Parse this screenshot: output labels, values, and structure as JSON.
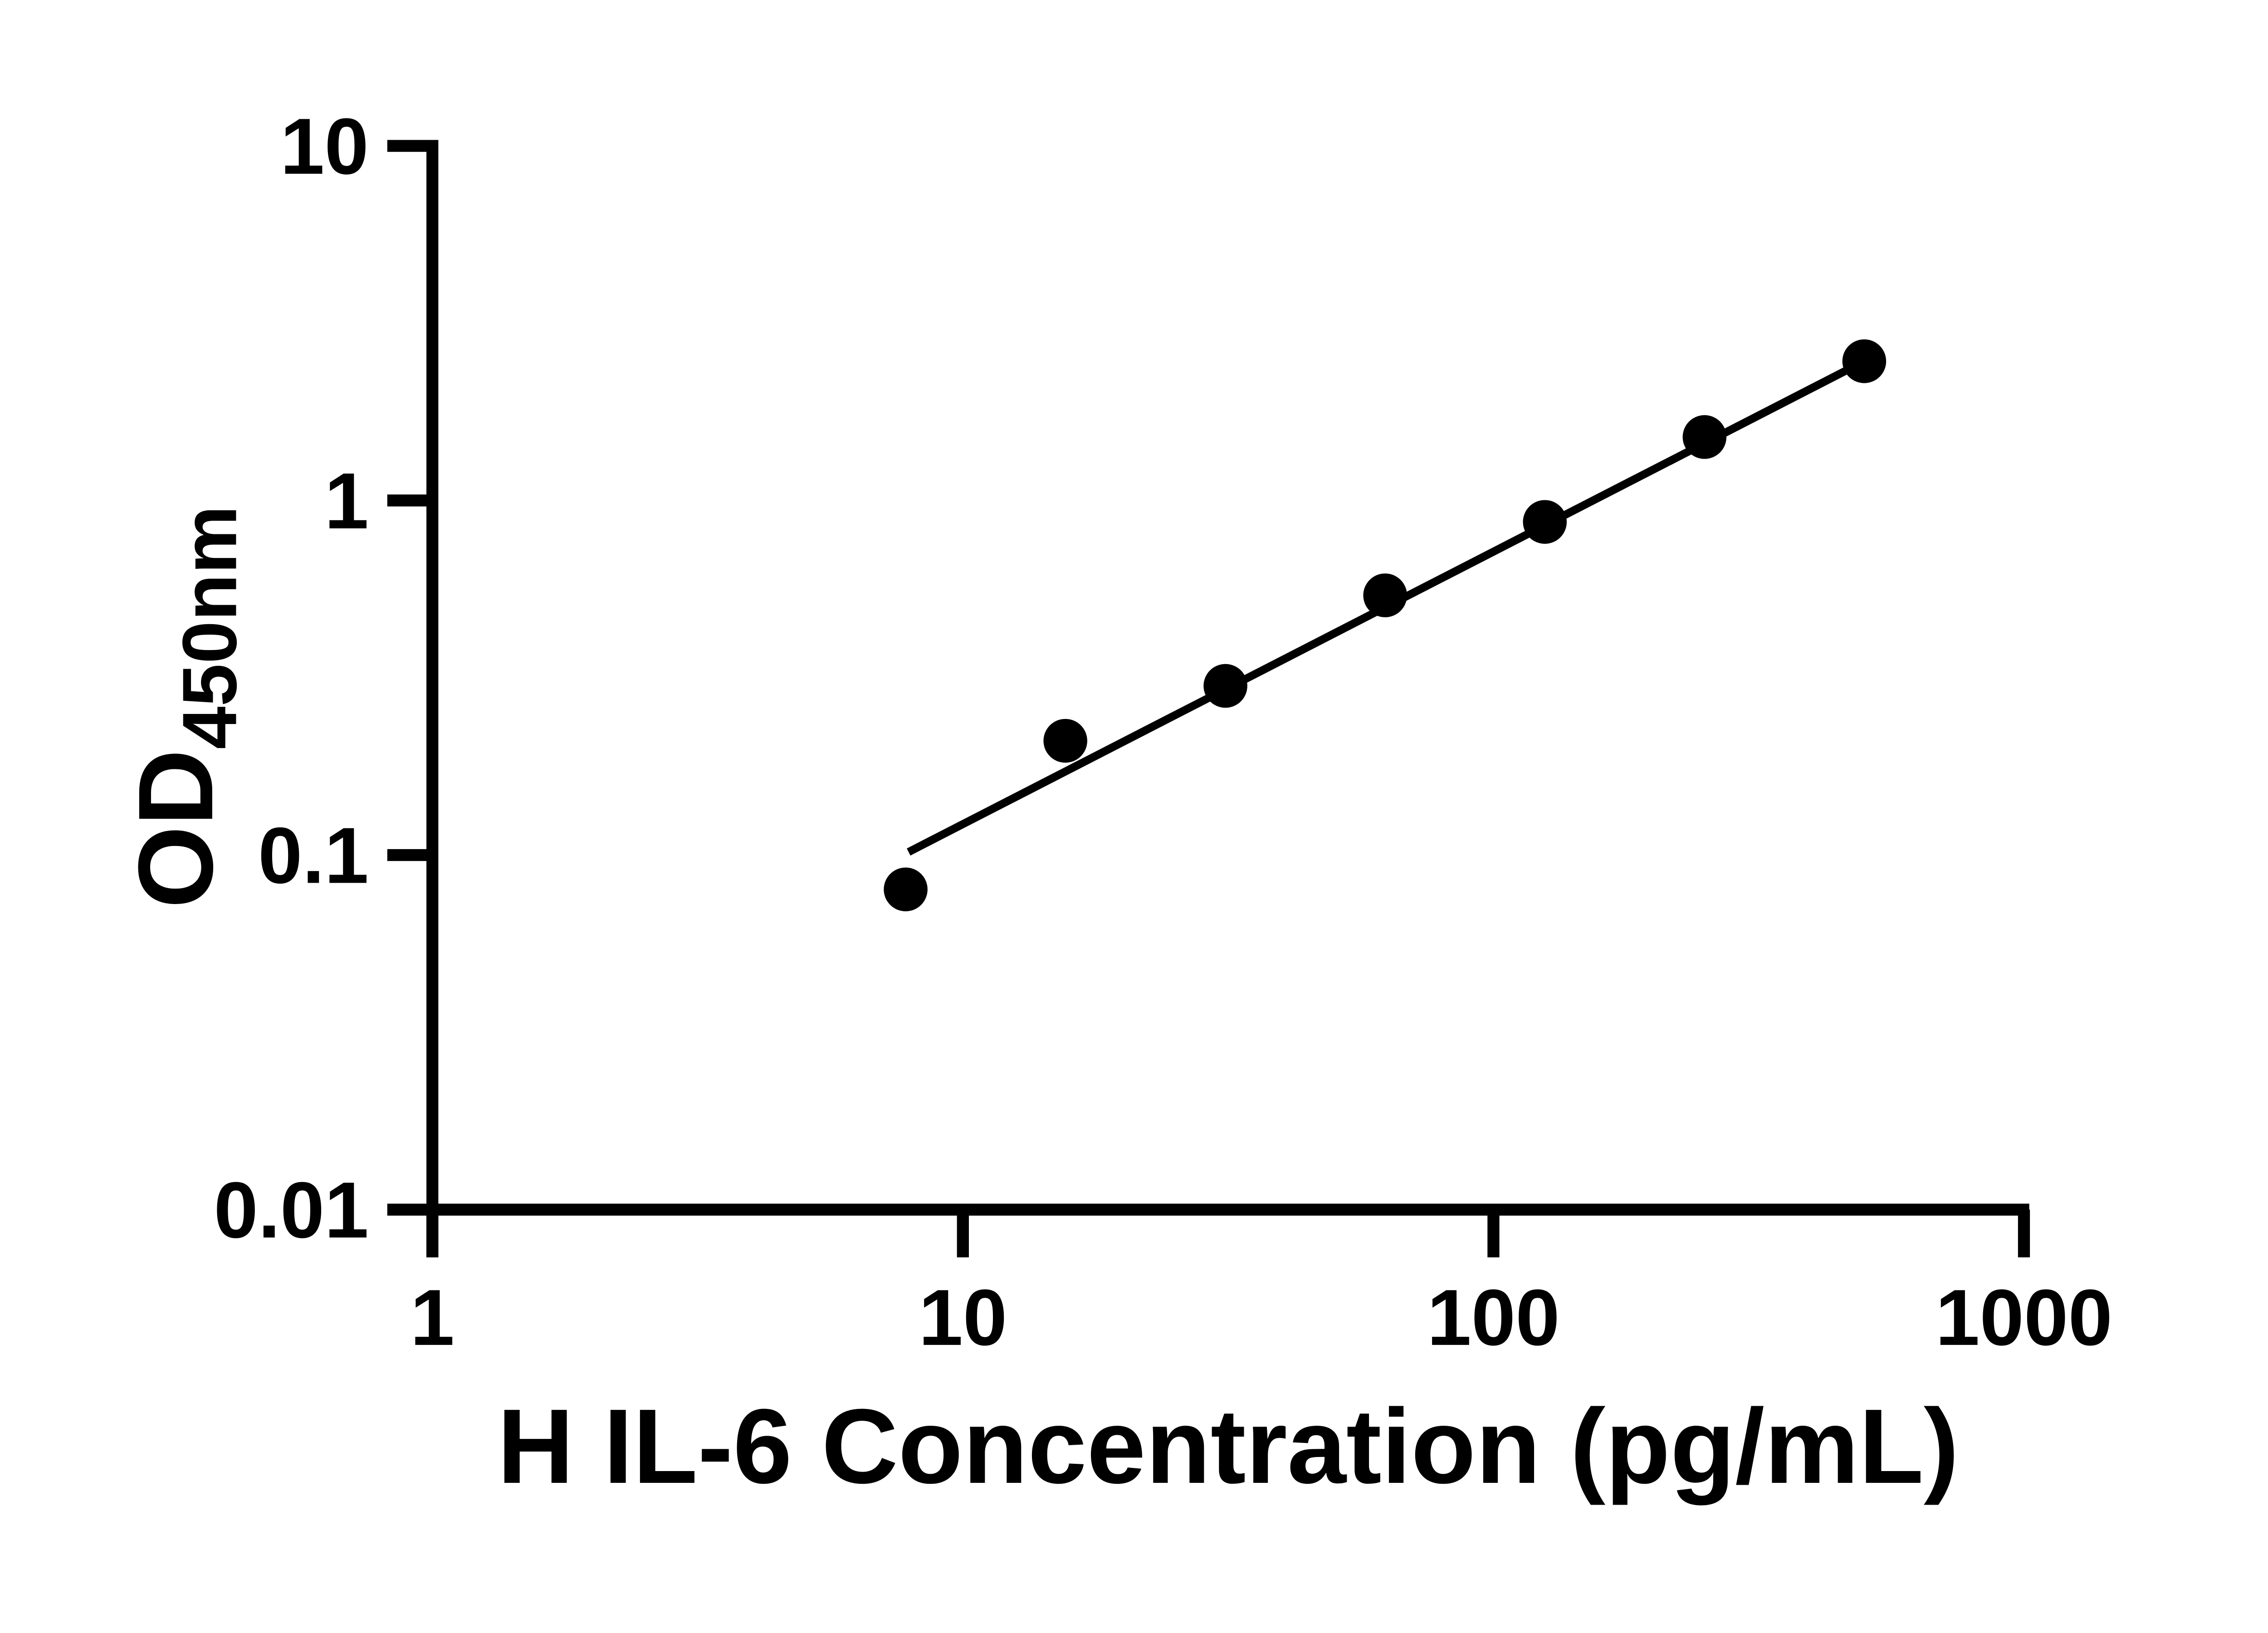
{
  "figure": {
    "background_color": "#ffffff",
    "ink_color": "#000000"
  },
  "chart_data": {
    "type": "scatter",
    "title": "",
    "xlabel": "H IL-6 Concentration (pg/mL)",
    "ylabel": "OD450nm",
    "ylabel_main": "OD",
    "ylabel_sub": "450nm",
    "x_scale": "log10",
    "y_scale": "log10",
    "xlim": [
      1,
      1000
    ],
    "ylim": [
      0.01,
      10
    ],
    "x_ticks": [
      1,
      10,
      100,
      1000
    ],
    "x_tick_labels": [
      "1",
      "10",
      "100",
      "1000"
    ],
    "y_ticks": [
      10,
      1,
      0.1,
      0.01
    ],
    "y_tick_labels": [
      "10",
      "1",
      "0.1",
      "0.01"
    ],
    "grid": false,
    "legend_position": "none",
    "marker": "filled-circle",
    "marker_color": "#000000",
    "series": [
      {
        "points": [
          {
            "x": 7.8,
            "y": 0.08
          },
          {
            "x": 15.6,
            "y": 0.21
          },
          {
            "x": 31.25,
            "y": 0.3
          },
          {
            "x": 62.5,
            "y": 0.54
          },
          {
            "x": 125,
            "y": 0.87
          },
          {
            "x": 250,
            "y": 1.51
          },
          {
            "x": 500,
            "y": 2.47
          }
        ]
      }
    ],
    "trend_line": {
      "x1": 7.9,
      "y1": 0.102,
      "x2": 500,
      "y2": 2.47,
      "color": "#000000"
    }
  }
}
